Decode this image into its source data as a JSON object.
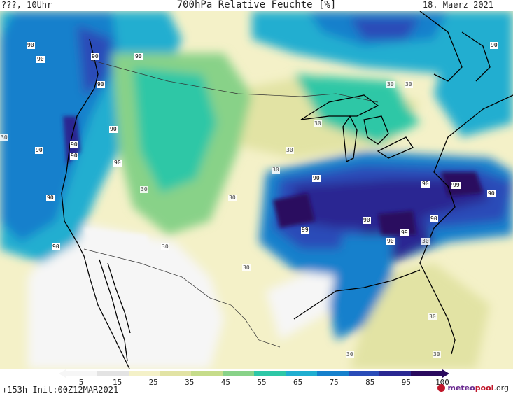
{
  "header": {
    "left": "???, 10Uhr",
    "title": "700hPa Relative Feuchte [%]",
    "date": "18. Maerz 2021"
  },
  "footer": {
    "run_info": "+153h  Init:00Z12MAR2021",
    "logo_brand_a": "meteo",
    "logo_brand_b": "pool",
    "logo_tld": ".org"
  },
  "colorbar": {
    "ticks": [
      "5",
      "15",
      "25",
      "35",
      "45",
      "55",
      "65",
      "75",
      "85",
      "95",
      "100"
    ],
    "colors": [
      "#f6f6f6",
      "#e3e3e3",
      "#f4f1c8",
      "#e2e3a4",
      "#c6dc8a",
      "#88d288",
      "#2ec7a6",
      "#20aed0",
      "#1580cc",
      "#2a4cb8",
      "#2a2892",
      "#2a0a5e"
    ]
  },
  "map": {
    "value_labels": [
      {
        "text": "90"
      },
      {
        "text": "90"
      },
      {
        "text": "90"
      },
      {
        "text": "90"
      },
      {
        "text": "90"
      },
      {
        "text": "90"
      },
      {
        "text": "90"
      },
      {
        "text": "90"
      },
      {
        "text": "90"
      },
      {
        "text": "90"
      },
      {
        "text": "90"
      },
      {
        "text": "90"
      },
      {
        "text": "90"
      },
      {
        "text": "90"
      },
      {
        "text": "90"
      },
      {
        "text": "90"
      },
      {
        "text": "90"
      },
      {
        "text": "90"
      },
      {
        "text": "90"
      },
      {
        "text": "90"
      },
      {
        "text": "99"
      },
      {
        "text": "99"
      },
      {
        "text": "99"
      },
      {
        "text": "30"
      },
      {
        "text": "30"
      },
      {
        "text": "30"
      },
      {
        "text": "30"
      },
      {
        "text": "30"
      },
      {
        "text": "30"
      },
      {
        "text": "30"
      },
      {
        "text": "30"
      },
      {
        "text": "30"
      },
      {
        "text": "30"
      },
      {
        "text": "30"
      },
      {
        "text": "30"
      },
      {
        "text": "30"
      },
      {
        "text": "30"
      },
      {
        "text": "30"
      }
    ]
  }
}
